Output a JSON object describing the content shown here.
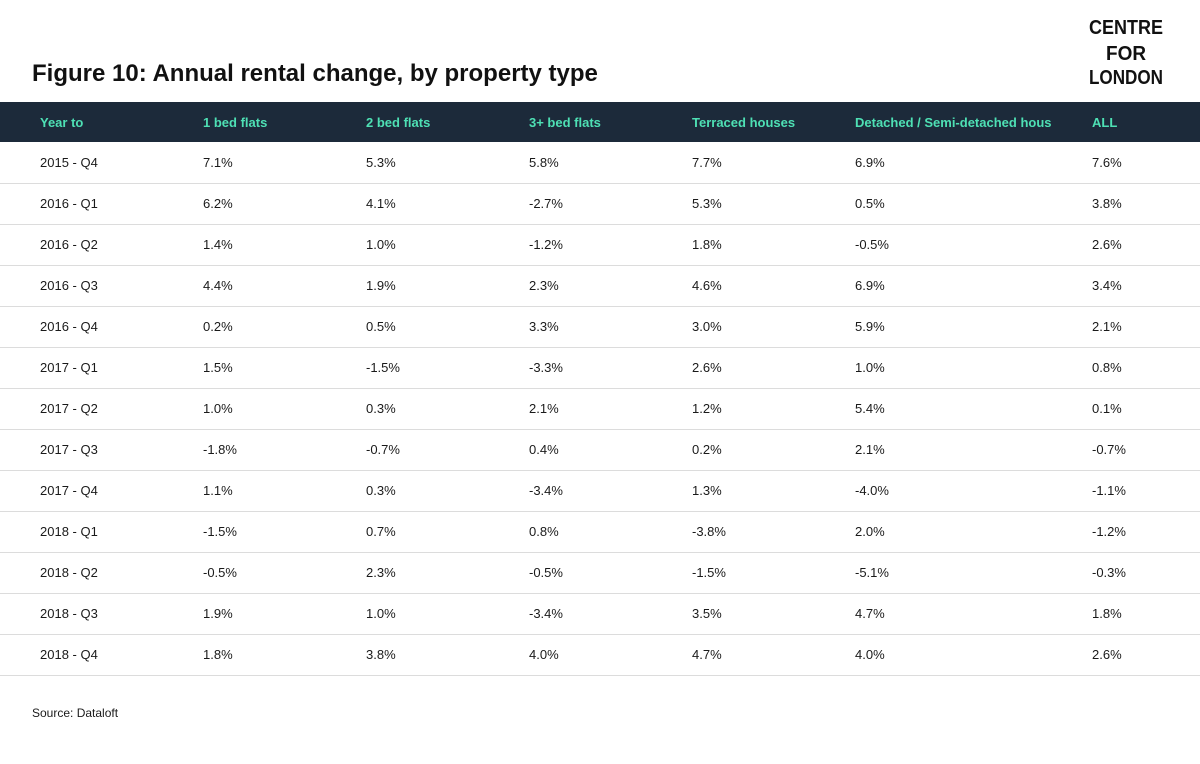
{
  "title": "Figure 10: Annual rental change, by property type",
  "logo": {
    "lines": [
      "CENTRE",
      "FOR",
      "LONDON"
    ]
  },
  "source": "Source: Dataloft",
  "colors": {
    "header_bg": "#1c2a3a",
    "header_text": "#4ee0b4"
  },
  "chart_data": {
    "type": "table",
    "columns": [
      "Year to",
      "1 bed flats",
      "2 bed flats",
      "3+ bed flats",
      "Terraced houses",
      "Detached / Semi-detached hous",
      "ALL"
    ],
    "rows": [
      [
        "2015 - Q4",
        "7.1%",
        "5.3%",
        "5.8%",
        "7.7%",
        "6.9%",
        "7.6%"
      ],
      [
        "2016 - Q1",
        "6.2%",
        "4.1%",
        "-2.7%",
        "5.3%",
        "0.5%",
        "3.8%"
      ],
      [
        "2016 - Q2",
        "1.4%",
        "1.0%",
        "-1.2%",
        "1.8%",
        "-0.5%",
        "2.6%"
      ],
      [
        "2016 - Q3",
        "4.4%",
        "1.9%",
        "2.3%",
        "4.6%",
        "6.9%",
        "3.4%"
      ],
      [
        "2016 - Q4",
        "0.2%",
        "0.5%",
        "3.3%",
        "3.0%",
        "5.9%",
        "2.1%"
      ],
      [
        "2017 - Q1",
        "1.5%",
        "-1.5%",
        "-3.3%",
        "2.6%",
        "1.0%",
        "0.8%"
      ],
      [
        "2017 - Q2",
        "1.0%",
        "0.3%",
        "2.1%",
        "1.2%",
        "5.4%",
        "0.1%"
      ],
      [
        "2017 - Q3",
        "-1.8%",
        "-0.7%",
        "0.4%",
        "0.2%",
        "2.1%",
        "-0.7%"
      ],
      [
        "2017 - Q4",
        "1.1%",
        "0.3%",
        "-3.4%",
        "1.3%",
        "-4.0%",
        "-1.1%"
      ],
      [
        "2018 - Q1",
        "-1.5%",
        "0.7%",
        "0.8%",
        "-3.8%",
        "2.0%",
        "-1.2%"
      ],
      [
        "2018 - Q2",
        "-0.5%",
        "2.3%",
        "-0.5%",
        "-1.5%",
        "-5.1%",
        "-0.3%"
      ],
      [
        "2018 - Q3",
        "1.9%",
        "1.0%",
        "-3.4%",
        "3.5%",
        "4.7%",
        "1.8%"
      ],
      [
        "2018 - Q4",
        "1.8%",
        "3.8%",
        "4.0%",
        "4.7%",
        "4.0%",
        "2.6%"
      ]
    ]
  }
}
